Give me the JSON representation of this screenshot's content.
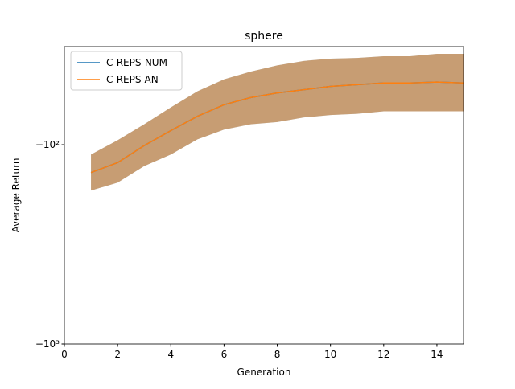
{
  "chart_data": {
    "type": "line",
    "title": "sphere",
    "x_label": "Generation",
    "y_label": "Average Return",
    "x": [
      1,
      2,
      3,
      4,
      5,
      6,
      7,
      8,
      9,
      10,
      11,
      12,
      13,
      14,
      15
    ],
    "series": [
      {
        "name": "C-REPS-NUM",
        "color": "#1f77b4",
        "values": [
          -138,
          -123,
          -101,
          -85,
          -72,
          -63,
          -58,
          -55,
          -53,
          -51,
          -50,
          -49,
          -49,
          -48.5,
          -49
        ],
        "lower": [
          -170,
          -155,
          -128,
          -112,
          -94,
          -84,
          -79,
          -77,
          -73,
          -71,
          -70,
          -68,
          -68,
          -68,
          -68
        ],
        "upper": [
          -112,
          -95,
          -79,
          -65,
          -54,
          -47,
          -43,
          -40,
          -38,
          -37,
          -36.7,
          -36,
          -36,
          -35,
          -35
        ]
      },
      {
        "name": "C-REPS-AN",
        "color": "#ff7f0e",
        "values": [
          -138,
          -123,
          -101,
          -85,
          -72,
          -63,
          -58,
          -55,
          -53,
          -51,
          -50,
          -49,
          -49,
          -48.5,
          -49
        ],
        "lower": [
          -170,
          -155,
          -128,
          -112,
          -94,
          -84,
          -79,
          -77,
          -73,
          -71,
          -70,
          -68,
          -68,
          -68,
          -68
        ],
        "upper": [
          -112,
          -95,
          -79,
          -65,
          -54,
          -47,
          -43,
          -40,
          -38,
          -37,
          -36.7,
          -36,
          -36,
          -35,
          -35
        ]
      }
    ],
    "xlim": [
      0,
      15
    ],
    "xticks": [
      0,
      2,
      4,
      6,
      8,
      10,
      12,
      14
    ],
    "ylim": [
      -1000,
      -32.2
    ],
    "yscale": "symlog",
    "yticks": [
      {
        "value": -100,
        "label": "−10²"
      },
      {
        "value": -1000,
        "label": "−10³"
      }
    ],
    "legend": "upper left"
  }
}
